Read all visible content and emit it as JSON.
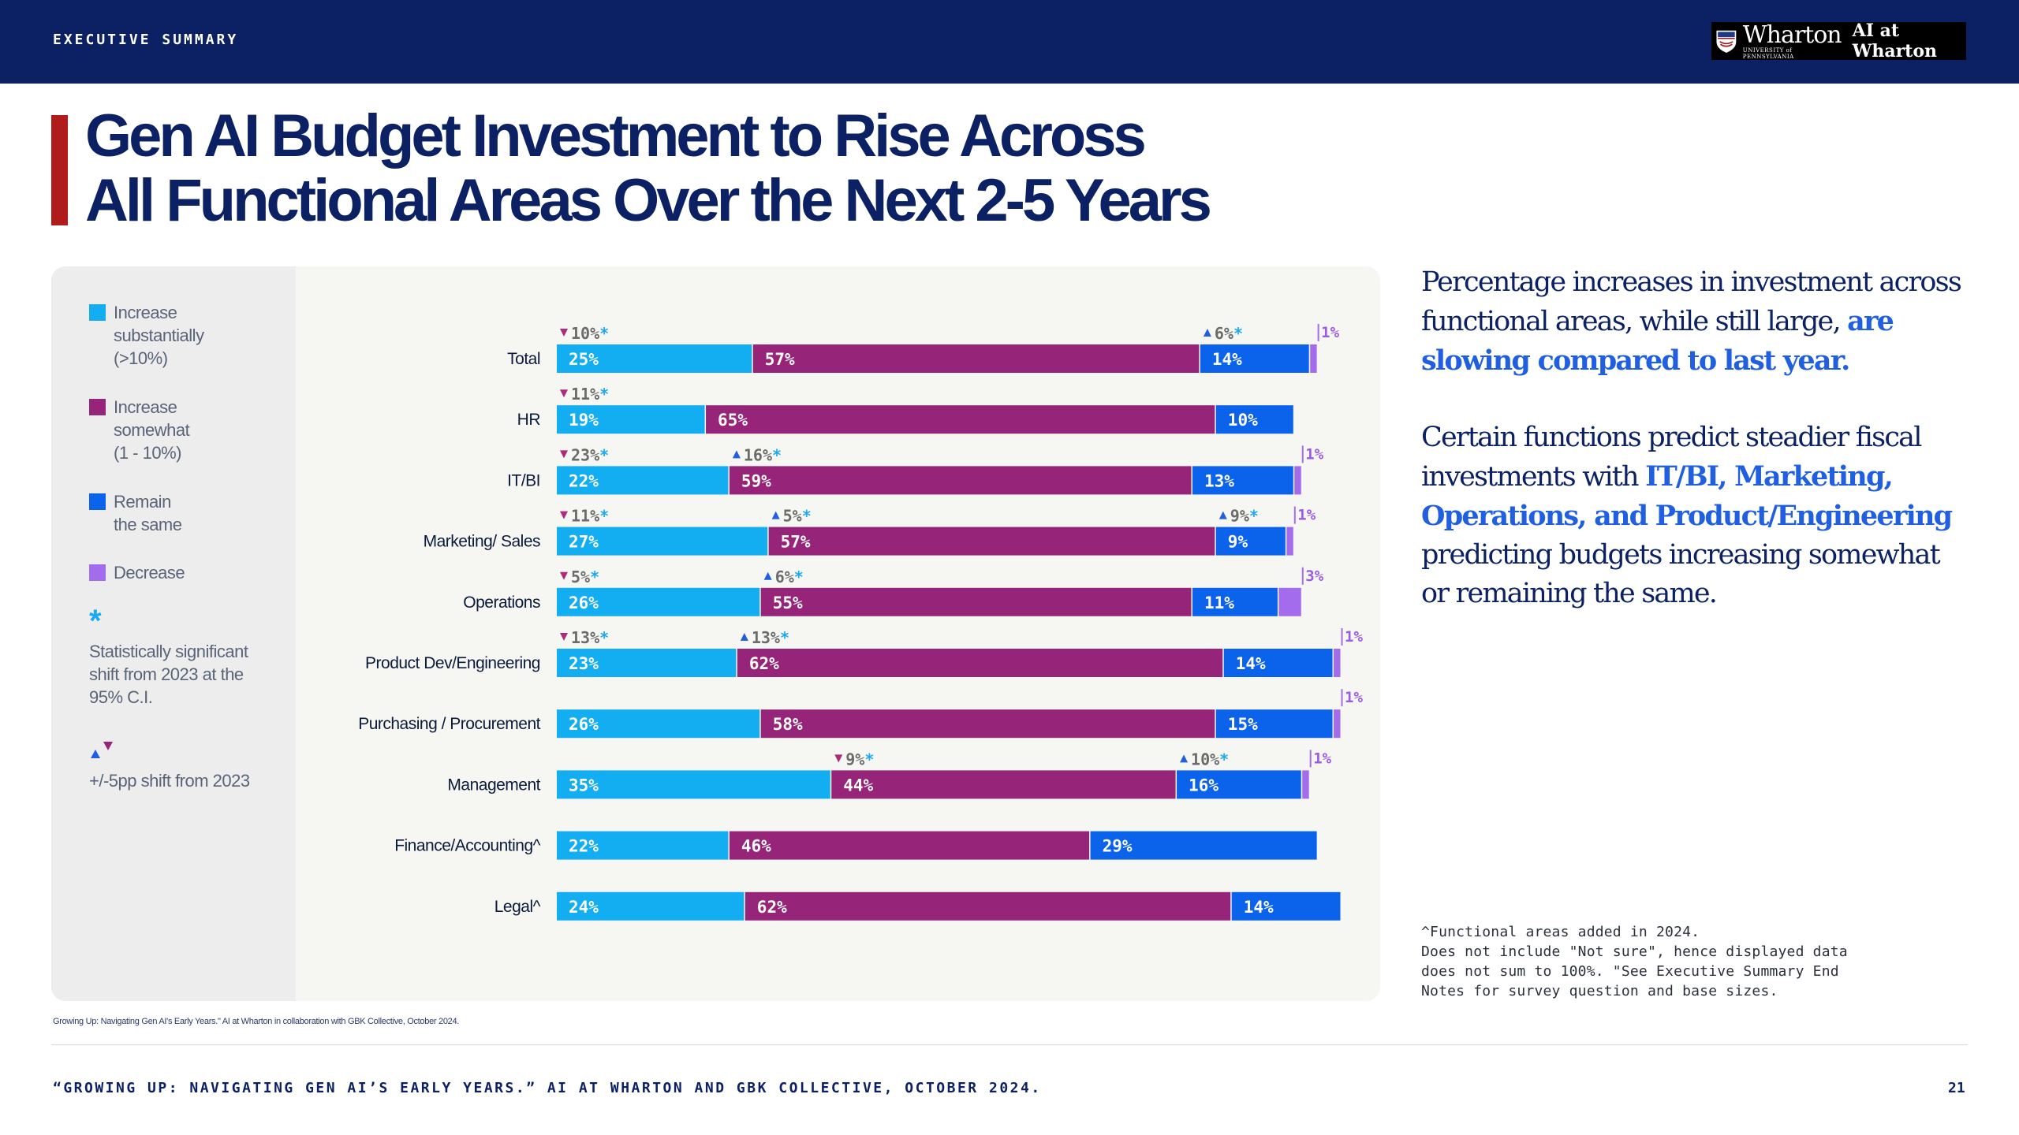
{
  "header": {
    "section": "EXECUTIVE SUMMARY",
    "logo_main": "Wharton",
    "logo_sub": "UNIVERSITY of PENNSYLVANIA",
    "logo_right": "AI at Wharton"
  },
  "title": {
    "line1": "Gen AI Budget Investment to Rise Across",
    "line2": "All Functional Areas Over the Next 2-5 Years"
  },
  "legend": {
    "items": [
      {
        "label_lines": [
          "Increase",
          "substantially",
          "(>10%)"
        ],
        "color": "#13adf2"
      },
      {
        "label_lines": [
          "Increase",
          "somewhat",
          "(1 - 10%)"
        ],
        "color": "#962479"
      },
      {
        "label_lines": [
          "Remain",
          "the same"
        ],
        "color": "#0b63eb"
      },
      {
        "label_lines": [
          "Decrease"
        ],
        "color": "#a36ced"
      }
    ],
    "star": "*",
    "significance_lines": [
      "Statistically significant",
      "shift from 2023 at the",
      "95% C.I."
    ],
    "shift_text": "+/-5pp shift from 2023"
  },
  "chart_data": {
    "type": "bar",
    "orientation": "horizontal-stacked",
    "unit": "%",
    "categories": [
      "Total",
      "HR",
      "IT/BI",
      "Marketing/ Sales",
      "Operations",
      "Product Dev/Engineering",
      "Purchasing / Procurement",
      "Management",
      "Finance/Accounting^",
      "Legal^"
    ],
    "series": [
      {
        "name": "Increase substantially (>10%)",
        "color": "#13adf2",
        "values": [
          25,
          19,
          22,
          27,
          26,
          23,
          26,
          35,
          22,
          24
        ]
      },
      {
        "name": "Increase somewhat (1 - 10%)",
        "color": "#962479",
        "values": [
          57,
          65,
          59,
          57,
          55,
          62,
          58,
          44,
          46,
          62
        ]
      },
      {
        "name": "Remain the same",
        "color": "#0b63eb",
        "values": [
          14,
          10,
          13,
          9,
          11,
          14,
          15,
          16,
          29,
          14
        ]
      },
      {
        "name": "Decrease",
        "color": "#a36ced",
        "values": [
          1,
          null,
          1,
          1,
          3,
          1,
          1,
          1,
          null,
          null
        ]
      }
    ],
    "shifts": [
      {
        "category": "Total",
        "series": 0,
        "direction": "down",
        "value": "10%",
        "significant": true
      },
      {
        "category": "Total",
        "series": 2,
        "direction": "up",
        "value": "6%",
        "significant": true
      },
      {
        "category": "HR",
        "series": 0,
        "direction": "down",
        "value": "11%",
        "significant": true
      },
      {
        "category": "IT/BI",
        "series": 0,
        "direction": "down",
        "value": "23%",
        "significant": true
      },
      {
        "category": "IT/BI",
        "series": 1,
        "direction": "up",
        "value": "16%",
        "significant": true
      },
      {
        "category": "Marketing/ Sales",
        "series": 0,
        "direction": "down",
        "value": "11%",
        "significant": true
      },
      {
        "category": "Marketing/ Sales",
        "series": 1,
        "direction": "up",
        "value": "5%",
        "significant": true
      },
      {
        "category": "Marketing/ Sales",
        "series": 2,
        "direction": "up",
        "value": "9%",
        "significant": true
      },
      {
        "category": "Operations",
        "series": 0,
        "direction": "down",
        "value": "5%",
        "significant": true
      },
      {
        "category": "Operations",
        "series": 1,
        "direction": "up",
        "value": "6%",
        "significant": true
      },
      {
        "category": "Product Dev/Engineering",
        "series": 0,
        "direction": "down",
        "value": "13%",
        "significant": true
      },
      {
        "category": "Product Dev/Engineering",
        "series": 1,
        "direction": "up",
        "value": "13%",
        "significant": true
      },
      {
        "category": "Management",
        "series": 1,
        "direction": "down",
        "value": "9%",
        "significant": true
      },
      {
        "category": "Management",
        "series": 2,
        "direction": "up",
        "value": "10%",
        "significant": true
      }
    ],
    "xlim": [
      0,
      100
    ],
    "legend_position": "left"
  },
  "commentary": {
    "p1_plain": "Percentage increases in investment across functional areas, while still large, ",
    "p1_highlight": "are slowing compared to last year.",
    "p2_plain_a": "Certain functions predict steadier fiscal investments with ",
    "p2_highlight": "IT/BI, Marketing, Operations, and Product/Engineering",
    "p2_plain_b": " predicting budgets increasing somewhat or remaining the same."
  },
  "footnote": {
    "lines": [
      "^Functional areas added in 2024.",
      "Does not include \"Not sure\", hence displayed data",
      "does not sum to 100%. \"See Executive Summary End",
      "Notes for survey question and base sizes."
    ]
  },
  "footer": {
    "small_source": "Growing Up: Navigating Gen AI's Early Years.\" AI at Wharton in collaboration with GBK Collective, October 2024.",
    "source": "“GROWING UP: NAVIGATING GEN AI’S EARLY YEARS.” AI AT WHARTON AND GBK COLLECTIVE, OCTOBER 2024.",
    "page": "21"
  }
}
